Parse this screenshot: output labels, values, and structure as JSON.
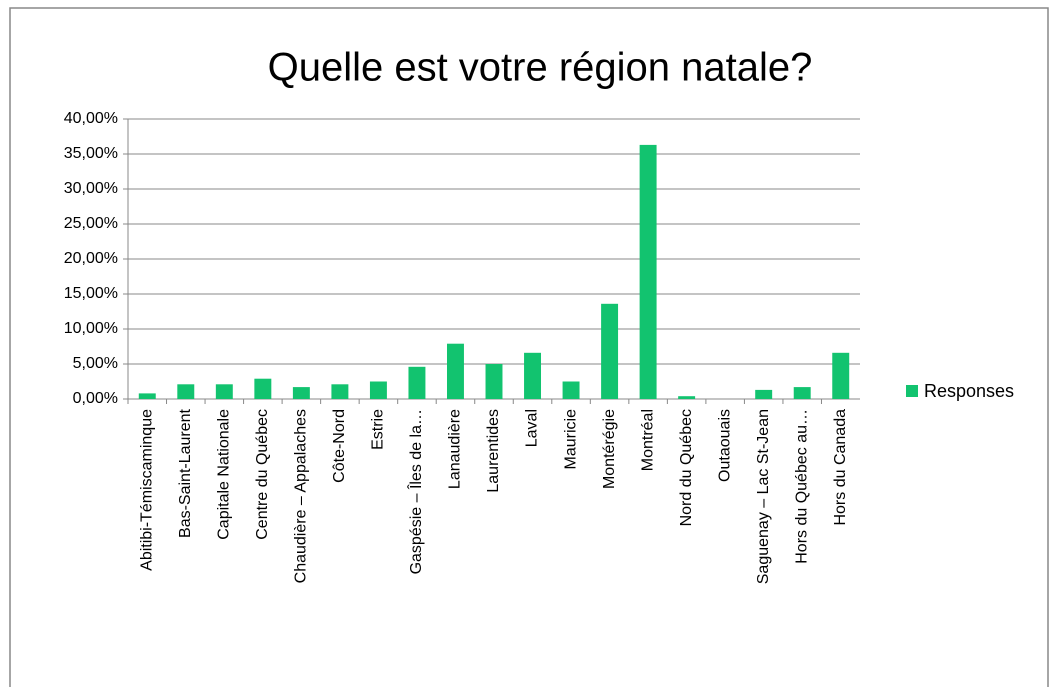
{
  "chart_data": {
    "type": "bar",
    "title": "Quelle est votre région natale?",
    "categories": [
      "Abitibi-Témiscaminque",
      "Bas-Saint-Laurent",
      "Capitale Nationale",
      "Centre du Québec",
      "Chaudière – Appalaches",
      "Côte-Nord",
      "Estrie",
      "Gaspésie – Îles de la…",
      "Lanaudière",
      "Laurentides",
      "Laval",
      "Mauricie",
      "Montérégie",
      "Montréal",
      "Nord du Québec",
      "Outaouais",
      "Saguenay – Lac St-Jean",
      "Hors du Québec au…",
      "Hors du Canada"
    ],
    "series": [
      {
        "name": "Responses",
        "color": "#12c36f",
        "values": [
          0.8,
          2.1,
          2.1,
          2.9,
          1.7,
          2.1,
          2.5,
          4.6,
          7.9,
          5.0,
          6.6,
          2.5,
          13.6,
          36.3,
          0.4,
          0,
          1.3,
          1.7,
          6.6
        ]
      }
    ],
    "ylim": [
      0,
      40
    ],
    "yticks": [
      {
        "value": 0,
        "label": "0,00%"
      },
      {
        "value": 5,
        "label": "5,00%"
      },
      {
        "value": 10,
        "label": "10,00%"
      },
      {
        "value": 15,
        "label": "15,00%"
      },
      {
        "value": 20,
        "label": "20,00%"
      },
      {
        "value": 25,
        "label": "25,00%"
      },
      {
        "value": 30,
        "label": "30,00%"
      },
      {
        "value": 35,
        "label": "35,00%"
      },
      {
        "value": 40,
        "label": "40,00%"
      }
    ],
    "grid": true,
    "legend": "right"
  }
}
